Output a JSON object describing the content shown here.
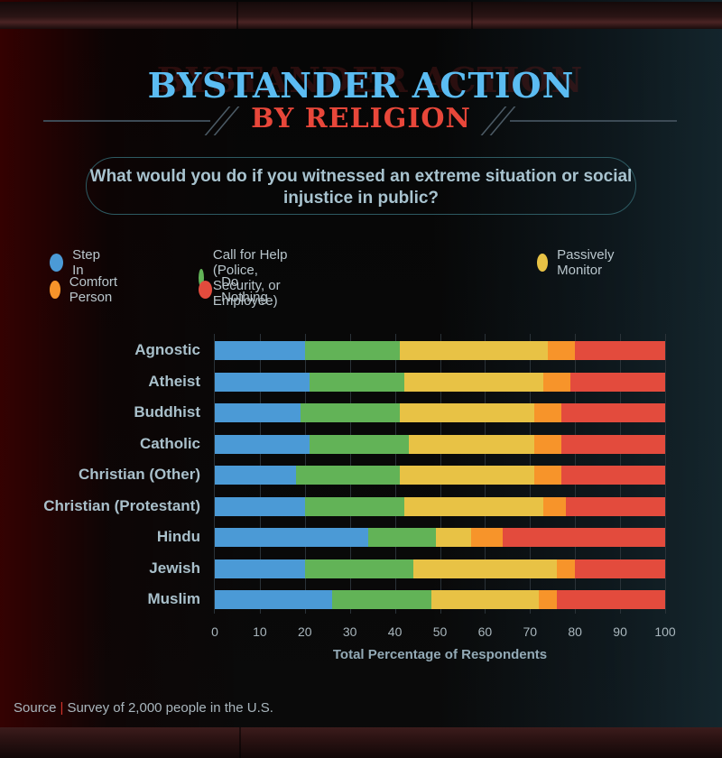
{
  "header": {
    "title_line1": "BYSTANDER ACTION",
    "title_line2": "BY RELIGION",
    "question": "What would you do if you witnessed an extreme situation or social injustice in public?"
  },
  "legend": [
    {
      "label": "Step In",
      "color": "#4b9ad6"
    },
    {
      "label": "Call for Help (Police, Security, or Employee)",
      "color": "#62b357"
    },
    {
      "label": "Passively Monitor",
      "color": "#e8c245"
    },
    {
      "label": "Comfort Person",
      "color": "#f7942a"
    },
    {
      "label": "Do Nothing",
      "color": "#e34b3d"
    }
  ],
  "axis": {
    "ticks": [
      "0",
      "10",
      "20",
      "30",
      "40",
      "50",
      "60",
      "70",
      "80",
      "90",
      "100"
    ],
    "xlabel": "Total Percentage of Respondents"
  },
  "source": {
    "label": "Source",
    "separator": "|",
    "text": "Survey of 2,000 people in the U.S."
  },
  "chart_data": {
    "type": "bar",
    "orientation": "horizontal",
    "stacked": true,
    "title": "Bystander Action by Religion",
    "subtitle": "What would you do if you witnessed an extreme situation or social injustice in public?",
    "xlabel": "Total Percentage of Respondents",
    "ylabel": "",
    "xlim": [
      0,
      100
    ],
    "grid": true,
    "legend_position": "top",
    "categories": [
      "Agnostic",
      "Atheist",
      "Buddhist",
      "Catholic",
      "Christian (Other)",
      "Christian (Protestant)",
      "Hindu",
      "Jewish",
      "Muslim"
    ],
    "series": [
      {
        "name": "Step In",
        "color": "#4b9ad6",
        "values": [
          20,
          21,
          19,
          21,
          18,
          20,
          34,
          20,
          26
        ]
      },
      {
        "name": "Call for Help (Police, Security, or Employee)",
        "color": "#62b357",
        "values": [
          21,
          21,
          22,
          22,
          23,
          22,
          15,
          24,
          22
        ]
      },
      {
        "name": "Passively Monitor",
        "color": "#e8c245",
        "values": [
          33,
          31,
          30,
          28,
          30,
          31,
          8,
          32,
          24
        ]
      },
      {
        "name": "Comfort Person",
        "color": "#f7942a",
        "values": [
          6,
          6,
          6,
          6,
          6,
          5,
          7,
          4,
          4
        ]
      },
      {
        "name": "Do Nothing",
        "color": "#e34b3d",
        "values": [
          20,
          21,
          23,
          23,
          23,
          22,
          36,
          20,
          24
        ]
      }
    ],
    "source": "Survey of 2,000 people in the U.S."
  }
}
